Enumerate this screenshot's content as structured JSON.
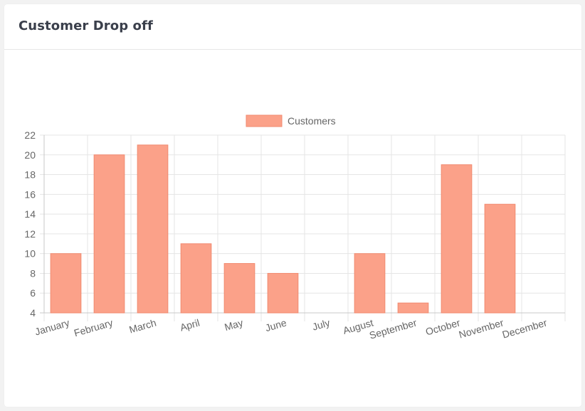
{
  "card": {
    "title": "Customer Drop off"
  },
  "colors": {
    "bar_fill": "#fba189",
    "bar_border": "#f18a70",
    "grid": "#e5e5e5",
    "axis": "#c8c8c8",
    "text": "#666666"
  },
  "chart_data": {
    "type": "bar",
    "title": "",
    "xlabel": "",
    "ylabel": "",
    "categories": [
      "January",
      "February",
      "March",
      "April",
      "May",
      "June",
      "July",
      "August",
      "September",
      "October",
      "November",
      "December"
    ],
    "series": [
      {
        "name": "Customers",
        "values": [
          10,
          20,
          21,
          11,
          9,
          8,
          4,
          10,
          5,
          19,
          15,
          4
        ]
      }
    ],
    "ylim": [
      4,
      22
    ],
    "yticks": [
      4,
      6,
      8,
      10,
      12,
      14,
      16,
      18,
      20,
      22
    ],
    "grid": true,
    "legend_position": "top-center"
  }
}
